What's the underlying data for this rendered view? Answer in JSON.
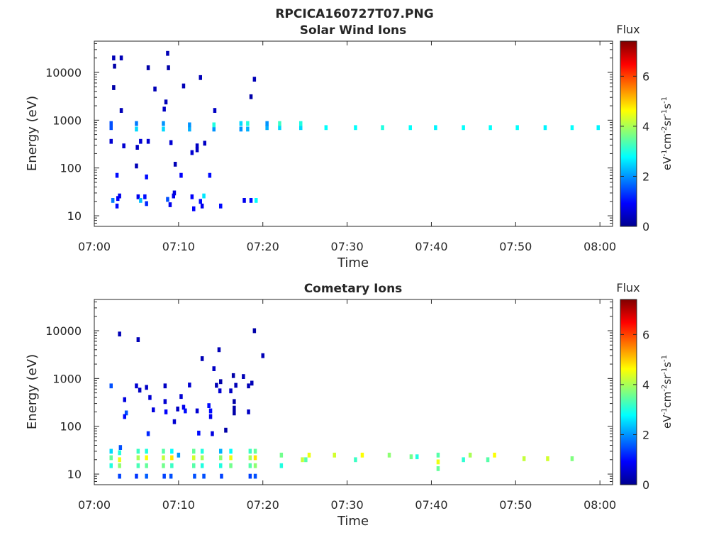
{
  "figure": {
    "title": "RPCICA160727T07.PNG"
  },
  "colorbar": {
    "title": "Flux",
    "unit": "eV-1cm-2sr-1s-1",
    "ticks": [
      0,
      2,
      4,
      6
    ],
    "range": [
      0,
      7.4
    ],
    "colormap": "jet"
  },
  "chart_data": [
    {
      "type": "heatmap",
      "title": "Solar Wind Ions",
      "xlabel": "Time",
      "ylabel": "Energy (eV)",
      "x_ticks": [
        "07:00",
        "07:10",
        "07:20",
        "07:30",
        "07:40",
        "07:50",
        "08:00"
      ],
      "y_ticks": [
        "10",
        "100",
        "1000",
        "10000"
      ],
      "x_range_minutes": [
        0,
        61.5
      ],
      "y_range_eV": [
        6,
        45000
      ],
      "y_scale": "log",
      "cells": [
        [
          2.0,
          700,
          1.5
        ],
        [
          2.0,
          850,
          1.5
        ],
        [
          5.0,
          650,
          2.5
        ],
        [
          5.0,
          850,
          1.8
        ],
        [
          8.2,
          650,
          2.5
        ],
        [
          8.2,
          850,
          2.0
        ],
        [
          11.3,
          650,
          2.2
        ],
        [
          11.3,
          800,
          2.0
        ],
        [
          14.2,
          650,
          2.0
        ],
        [
          14.2,
          800,
          3.0
        ],
        [
          17.4,
          650,
          2.0
        ],
        [
          17.4,
          850,
          2.5
        ],
        [
          18.2,
          650,
          2.2
        ],
        [
          18.2,
          850,
          3.0
        ],
        [
          20.5,
          700,
          2.2
        ],
        [
          20.5,
          850,
          2.0
        ],
        [
          22.0,
          700,
          2.5
        ],
        [
          22.0,
          850,
          3.2
        ],
        [
          24.5,
          700,
          2.5
        ],
        [
          24.5,
          850,
          3.0
        ],
        [
          27.5,
          700,
          2.8
        ],
        [
          31.0,
          700,
          2.8
        ],
        [
          34.2,
          700,
          3.0
        ],
        [
          37.5,
          700,
          2.8
        ],
        [
          40.5,
          700,
          2.7
        ],
        [
          43.8,
          700,
          2.8
        ],
        [
          47.0,
          700,
          2.8
        ],
        [
          50.2,
          700,
          2.8
        ],
        [
          53.5,
          700,
          2.7
        ],
        [
          56.7,
          700,
          2.8
        ],
        [
          59.8,
          700,
          2.7
        ],
        [
          2.3,
          20000,
          0.4
        ],
        [
          3.2,
          20000,
          0.4
        ],
        [
          8.7,
          25000,
          0.4
        ],
        [
          2.4,
          13500,
          0.3
        ],
        [
          6.4,
          12500,
          0.3
        ],
        [
          8.8,
          12500,
          0.3
        ],
        [
          12.6,
          7800,
          0.4
        ],
        [
          19.0,
          7200,
          0.4
        ],
        [
          10.6,
          5200,
          0.4
        ],
        [
          7.2,
          4500,
          0.4
        ],
        [
          18.6,
          3100,
          0.3
        ],
        [
          8.5,
          2400,
          0.4
        ],
        [
          14.3,
          1600,
          0.5
        ],
        [
          3.2,
          1600,
          0.4
        ],
        [
          2.3,
          4800,
          0.3
        ],
        [
          2.0,
          360,
          0.6
        ],
        [
          3.5,
          290,
          0.6
        ],
        [
          5.5,
          360,
          0.6
        ],
        [
          6.4,
          360,
          0.6
        ],
        [
          9.1,
          340,
          0.6
        ],
        [
          12.2,
          290,
          0.5
        ],
        [
          13.1,
          330,
          0.5
        ],
        [
          11.6,
          210,
          0.6
        ],
        [
          5.1,
          270,
          0.5
        ],
        [
          8.3,
          1700,
          0.5
        ],
        [
          2.7,
          70,
          1.0
        ],
        [
          6.2,
          65,
          1.0
        ],
        [
          10.3,
          70,
          0.9
        ],
        [
          13.7,
          70,
          1.0
        ],
        [
          9.6,
          120,
          0.4
        ],
        [
          5.0,
          110,
          0.4
        ],
        [
          12.2,
          240,
          0.5
        ],
        [
          2.2,
          21,
          1.8
        ],
        [
          2.8,
          23,
          0.9
        ],
        [
          3.0,
          26,
          0.8
        ],
        [
          2.7,
          16,
          1.0
        ],
        [
          5.2,
          25,
          0.8
        ],
        [
          6.0,
          25,
          1.0
        ],
        [
          6.2,
          18,
          1.2
        ],
        [
          5.5,
          21,
          2.3
        ],
        [
          8.7,
          22,
          1.5
        ],
        [
          9.4,
          26,
          0.8
        ],
        [
          9.5,
          30,
          0.7
        ],
        [
          9.0,
          17,
          0.8
        ],
        [
          11.6,
          25,
          0.9
        ],
        [
          11.8,
          14,
          0.9
        ],
        [
          12.6,
          20,
          1.0
        ],
        [
          13.0,
          26,
          2.6
        ],
        [
          12.8,
          16,
          0.8
        ],
        [
          15.0,
          16,
          1.0
        ],
        [
          17.8,
          21,
          0.8
        ],
        [
          18.6,
          21,
          1.0
        ],
        [
          19.2,
          21,
          2.8
        ]
      ]
    },
    {
      "type": "heatmap",
      "title": "Cometary Ions",
      "xlabel": "Time",
      "ylabel": "Energy (eV)",
      "x_ticks": [
        "07:00",
        "07:10",
        "07:20",
        "07:30",
        "07:40",
        "07:50",
        "08:00"
      ],
      "y_ticks": [
        "10",
        "100",
        "1000",
        "10000"
      ],
      "x_range_minutes": [
        0,
        61.5
      ],
      "y_range_eV": [
        6,
        45000
      ],
      "y_scale": "log",
      "cells": [
        [
          2.0,
          30,
          2.5
        ],
        [
          2.0,
          22,
          3.5
        ],
        [
          2.0,
          15,
          3.0
        ],
        [
          3.0,
          28,
          3.0
        ],
        [
          3.0,
          20,
          4.5
        ],
        [
          3.0,
          15,
          3.8
        ],
        [
          3.1,
          36,
          1.5
        ],
        [
          5.2,
          30,
          3.2
        ],
        [
          5.2,
          22,
          4.0
        ],
        [
          5.2,
          15,
          3.3
        ],
        [
          6.2,
          30,
          3.0
        ],
        [
          6.2,
          22,
          4.6
        ],
        [
          6.2,
          15,
          3.5
        ],
        [
          8.2,
          30,
          3.4
        ],
        [
          8.2,
          22,
          4.2
        ],
        [
          8.2,
          15,
          3.6
        ],
        [
          9.2,
          30,
          2.8
        ],
        [
          9.2,
          22,
          4.8
        ],
        [
          9.2,
          15,
          3.2
        ],
        [
          10.0,
          25,
          2.0
        ],
        [
          11.8,
          30,
          3.5
        ],
        [
          11.8,
          22,
          4.3
        ],
        [
          11.8,
          15,
          3.4
        ],
        [
          12.8,
          30,
          3.0
        ],
        [
          12.8,
          22,
          4.0
        ],
        [
          12.8,
          15,
          3.0
        ],
        [
          15.0,
          30,
          2.2
        ],
        [
          15.0,
          22,
          3.8
        ],
        [
          15.0,
          15,
          3.0
        ],
        [
          16.2,
          30,
          2.8
        ],
        [
          16.2,
          22,
          4.5
        ],
        [
          16.2,
          15,
          3.6
        ],
        [
          18.5,
          30,
          3.2
        ],
        [
          18.5,
          22,
          4.0
        ],
        [
          18.5,
          15,
          3.4
        ],
        [
          19.1,
          30,
          3.5
        ],
        [
          19.1,
          22,
          4.8
        ],
        [
          19.1,
          15,
          3.8
        ],
        [
          3.0,
          9,
          1.4
        ],
        [
          5.0,
          9,
          1.3
        ],
        [
          6.2,
          9,
          1.6
        ],
        [
          8.3,
          9,
          1.4
        ],
        [
          9.1,
          9,
          1.5
        ],
        [
          11.9,
          9,
          1.5
        ],
        [
          13.0,
          9,
          1.5
        ],
        [
          15.1,
          9,
          1.4
        ],
        [
          18.5,
          9,
          1.4
        ],
        [
          19.1,
          9,
          1.5
        ],
        [
          22.2,
          25,
          3.6
        ],
        [
          22.2,
          15,
          3.0
        ],
        [
          25.5,
          25,
          4.5
        ],
        [
          25.1,
          20,
          3.4
        ],
        [
          24.7,
          20,
          4.2
        ],
        [
          28.5,
          25,
          4.3
        ],
        [
          31.8,
          25,
          4.6
        ],
        [
          31.0,
          20,
          3.2
        ],
        [
          35.0,
          25,
          3.8
        ],
        [
          37.6,
          23,
          3.6
        ],
        [
          38.3,
          23,
          3.0
        ],
        [
          40.8,
          25,
          3.4
        ],
        [
          40.8,
          18,
          4.5
        ],
        [
          40.8,
          13,
          3.5
        ],
        [
          44.6,
          25,
          4.0
        ],
        [
          43.8,
          20,
          3.1
        ],
        [
          47.5,
          25,
          4.6
        ],
        [
          46.7,
          20,
          3.4
        ],
        [
          51.0,
          21,
          4.2
        ],
        [
          53.8,
          21,
          4.3
        ],
        [
          56.7,
          21,
          3.7
        ],
        [
          2.0,
          700,
          1.5
        ],
        [
          3.0,
          8500,
          0.4
        ],
        [
          5.2,
          6500,
          0.4
        ],
        [
          5.0,
          700,
          0.6
        ],
        [
          5.4,
          570,
          0.5
        ],
        [
          3.6,
          360,
          0.7
        ],
        [
          6.2,
          650,
          0.5
        ],
        [
          6.6,
          400,
          0.6
        ],
        [
          8.4,
          700,
          0.5
        ],
        [
          11.3,
          730,
          0.6
        ],
        [
          10.3,
          420,
          0.6
        ],
        [
          8.4,
          330,
          0.6
        ],
        [
          9.9,
          230,
          0.5
        ],
        [
          3.8,
          190,
          1.5
        ],
        [
          3.6,
          160,
          1.0
        ],
        [
          7.0,
          220,
          0.7
        ],
        [
          8.5,
          200,
          0.9
        ],
        [
          10.6,
          250,
          0.8
        ],
        [
          10.8,
          210,
          1.0
        ],
        [
          12.2,
          210,
          0.6
        ],
        [
          13.6,
          270,
          1.0
        ],
        [
          13.8,
          210,
          1.0
        ],
        [
          13.8,
          160,
          0.8
        ],
        [
          16.6,
          330,
          0.3
        ],
        [
          16.6,
          240,
          0.3
        ],
        [
          16.6,
          190,
          0.3
        ],
        [
          18.3,
          200,
          0.5
        ],
        [
          15.6,
          83,
          0.3
        ],
        [
          12.4,
          72,
          1.0
        ],
        [
          14.0,
          70,
          0.7
        ],
        [
          6.4,
          70,
          1.2
        ],
        [
          9.5,
          125,
          0.6
        ],
        [
          14.5,
          720,
          0.4
        ],
        [
          15.0,
          860,
          0.3
        ],
        [
          16.8,
          720,
          0.4
        ],
        [
          17.7,
          1100,
          0.4
        ],
        [
          18.7,
          800,
          0.4
        ],
        [
          16.5,
          1150,
          0.3
        ],
        [
          14.2,
          1600,
          0.5
        ],
        [
          14.8,
          4000,
          0.4
        ],
        [
          12.8,
          2600,
          0.4
        ],
        [
          19.0,
          10000,
          0.3
        ],
        [
          20.0,
          3000,
          0.4
        ],
        [
          16.2,
          550,
          0.5
        ],
        [
          18.3,
          700,
          0.4
        ],
        [
          14.9,
          550,
          0.6
        ]
      ]
    }
  ]
}
